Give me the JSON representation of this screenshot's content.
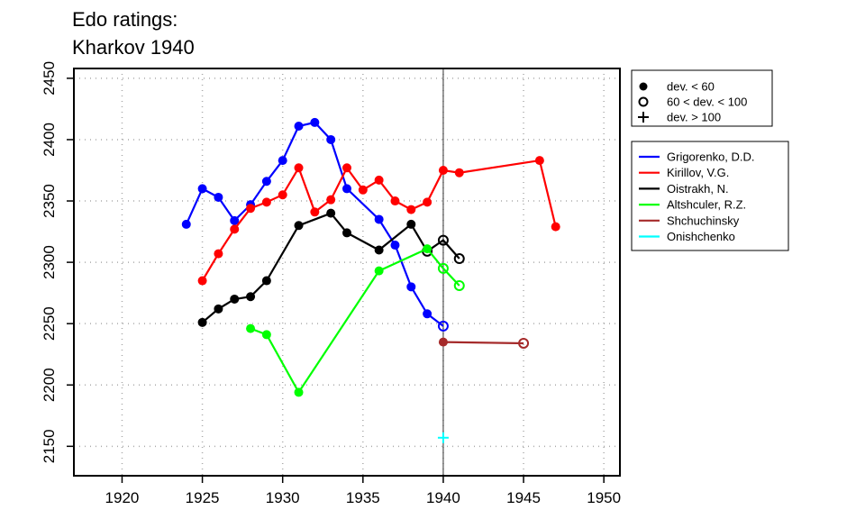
{
  "chart_data": {
    "type": "line",
    "title": "Edo ratings:",
    "subtitle": "Kharkov 1940",
    "xlabel": "",
    "ylabel": "",
    "xlim": [
      1917,
      1951
    ],
    "ylim": [
      2126,
      2458
    ],
    "x_ticks": [
      1920,
      1925,
      1930,
      1935,
      1940,
      1945,
      1950
    ],
    "y_ticks": [
      2150,
      2200,
      2250,
      2300,
      2350,
      2400,
      2450
    ],
    "grid": true,
    "vline_x": 1940,
    "marker_legend": [
      {
        "label": "dev. < 60",
        "marker": "filled"
      },
      {
        "label": "60 < dev. < 100",
        "marker": "open"
      },
      {
        "label": "dev. > 100",
        "marker": "plus"
      }
    ],
    "series": [
      {
        "name": "Grigorenko, D.D.",
        "color": "#0000ff",
        "points": [
          [
            1924,
            2331,
            "filled"
          ],
          [
            1925,
            2360,
            "filled"
          ],
          [
            1926,
            2353,
            "filled"
          ],
          [
            1927,
            2334,
            "filled"
          ],
          [
            1928,
            2347,
            "filled"
          ],
          [
            1929,
            2366,
            "filled"
          ],
          [
            1930,
            2383,
            "filled"
          ],
          [
            1931,
            2411,
            "filled"
          ],
          [
            1932,
            2414,
            "filled"
          ],
          [
            1933,
            2400,
            "filled"
          ],
          [
            1934,
            2360,
            "filled"
          ],
          [
            1936,
            2335,
            "filled"
          ],
          [
            1937,
            2314,
            "filled"
          ],
          [
            1938,
            2280,
            "filled"
          ],
          [
            1939,
            2258,
            "filled"
          ],
          [
            1940,
            2248,
            "open"
          ]
        ]
      },
      {
        "name": "Kirillov, V.G.",
        "color": "#ff0000",
        "points": [
          [
            1925,
            2285,
            "filled"
          ],
          [
            1926,
            2307,
            "filled"
          ],
          [
            1927,
            2327,
            "filled"
          ],
          [
            1928,
            2344,
            "filled"
          ],
          [
            1929,
            2349,
            "filled"
          ],
          [
            1930,
            2355,
            "filled"
          ],
          [
            1931,
            2377,
            "filled"
          ],
          [
            1932,
            2341,
            "filled"
          ],
          [
            1933,
            2351,
            "filled"
          ],
          [
            1934,
            2377,
            "filled"
          ],
          [
            1935,
            2359,
            "filled"
          ],
          [
            1936,
            2367,
            "filled"
          ],
          [
            1937,
            2350,
            "filled"
          ],
          [
            1938,
            2343,
            "filled"
          ],
          [
            1939,
            2349,
            "filled"
          ],
          [
            1940,
            2375,
            "filled"
          ],
          [
            1941,
            2373,
            "filled"
          ],
          [
            1946,
            2383,
            "filled"
          ],
          [
            1947,
            2329,
            "filled"
          ]
        ]
      },
      {
        "name": "Oistrakh, N.",
        "color": "#000000",
        "points": [
          [
            1925,
            2251,
            "filled"
          ],
          [
            1926,
            2262,
            "filled"
          ],
          [
            1927,
            2270,
            "filled"
          ],
          [
            1928,
            2272,
            "filled"
          ],
          [
            1929,
            2285,
            "filled"
          ],
          [
            1931,
            2330,
            "filled"
          ],
          [
            1933,
            2340,
            "filled"
          ],
          [
            1934,
            2324,
            "filled"
          ],
          [
            1936,
            2310,
            "filled"
          ],
          [
            1938,
            2331,
            "filled"
          ],
          [
            1939,
            2309,
            "open"
          ],
          [
            1940,
            2318,
            "open"
          ],
          [
            1941,
            2303,
            "open"
          ]
        ]
      },
      {
        "name": "Altshculer, R.Z.",
        "color": "#00ff00",
        "points": [
          [
            1928,
            2246,
            "filled"
          ],
          [
            1929,
            2241,
            "filled"
          ],
          [
            1931,
            2194,
            "filled"
          ],
          [
            1936,
            2293,
            "filled"
          ],
          [
            1939,
            2311,
            "filled"
          ],
          [
            1940,
            2295,
            "open"
          ],
          [
            1941,
            2281,
            "open"
          ]
        ]
      },
      {
        "name": "Shchuchinsky",
        "color": "#a52a2a",
        "points": [
          [
            1940,
            2235,
            "filled"
          ],
          [
            1945,
            2234,
            "open"
          ]
        ]
      },
      {
        "name": "Onishchenko",
        "color": "#00ffff",
        "points": [
          [
            1940,
            2157,
            "plus"
          ]
        ]
      }
    ]
  }
}
